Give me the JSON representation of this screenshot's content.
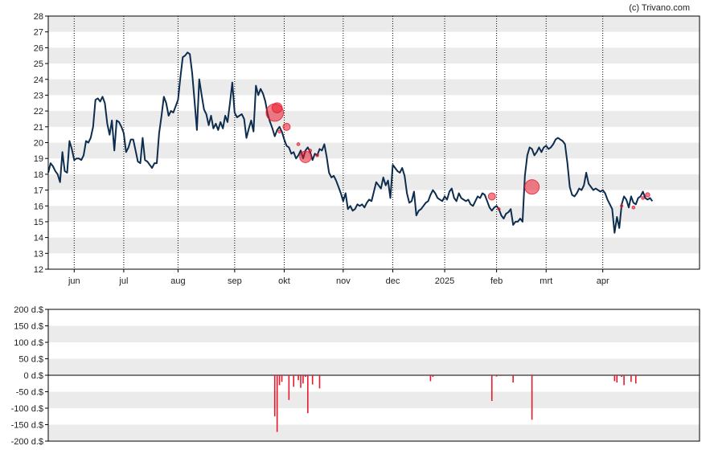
{
  "credit": "(c) Trivano.com",
  "colors": {
    "price_line": "#0d2d4f",
    "band": "#ebebeb",
    "insider_bar": "#e8192c",
    "bubble": "#e8192c",
    "axis": "#000000"
  },
  "chart_data": [
    {
      "type": "line",
      "name": "price",
      "ylim": [
        12,
        28
      ],
      "yticks": [
        "12",
        "13",
        "14",
        "15",
        "16",
        "17",
        "18",
        "19",
        "20",
        "21",
        "22",
        "23",
        "24",
        "25",
        "26",
        "27",
        "28"
      ],
      "month_labels": [
        "jun",
        "jul",
        "aug",
        "sep",
        "okt",
        "nov",
        "dec",
        "2025",
        "feb",
        "mrt",
        "apr"
      ],
      "month_positions": [
        11,
        32,
        55,
        79,
        100,
        125,
        146,
        168,
        190,
        211,
        235
      ],
      "x_range": [
        0,
        276
      ],
      "values": [
        [
          0,
          18.1
        ],
        [
          1,
          18.7
        ],
        [
          2,
          18.5
        ],
        [
          3,
          18.2
        ],
        [
          4,
          18.0
        ],
        [
          5,
          17.5
        ],
        [
          6,
          19.4
        ],
        [
          7,
          18.2
        ],
        [
          8,
          18.1
        ],
        [
          9,
          20.1
        ],
        [
          10,
          19.6
        ],
        [
          11,
          18.9
        ],
        [
          12,
          19.0
        ],
        [
          13,
          19.0
        ],
        [
          14,
          18.9
        ],
        [
          15,
          19.2
        ],
        [
          16,
          20.1
        ],
        [
          17,
          20.0
        ],
        [
          18,
          20.3
        ],
        [
          19,
          21.0
        ],
        [
          20,
          22.7
        ],
        [
          21,
          22.8
        ],
        [
          22,
          22.6
        ],
        [
          23,
          22.9
        ],
        [
          24,
          22.5
        ],
        [
          25,
          21.2
        ],
        [
          26,
          20.5
        ],
        [
          27,
          21.4
        ],
        [
          28,
          19.5
        ],
        [
          29,
          21.4
        ],
        [
          30,
          21.3
        ],
        [
          31,
          21.0
        ],
        [
          32,
          20.6
        ],
        [
          33,
          19.4
        ],
        [
          34,
          19.7
        ],
        [
          35,
          20.2
        ],
        [
          36,
          20.2
        ],
        [
          37,
          19.5
        ],
        [
          38,
          18.8
        ],
        [
          39,
          18.7
        ],
        [
          40,
          20.3
        ],
        [
          41,
          18.9
        ],
        [
          42,
          18.8
        ],
        [
          43,
          18.6
        ],
        [
          44,
          18.4
        ],
        [
          45,
          18.7
        ],
        [
          46,
          18.7
        ],
        [
          47,
          20.6
        ],
        [
          48,
          21.7
        ],
        [
          49,
          22.9
        ],
        [
          50,
          22.5
        ],
        [
          51,
          21.7
        ],
        [
          52,
          22.0
        ],
        [
          53,
          21.9
        ],
        [
          54,
          22.3
        ],
        [
          55,
          22.7
        ],
        [
          56,
          24.1
        ],
        [
          57,
          25.4
        ],
        [
          58,
          25.5
        ],
        [
          59,
          25.7
        ],
        [
          60,
          25.6
        ],
        [
          61,
          24.4
        ],
        [
          62,
          22.6
        ],
        [
          63,
          20.8
        ],
        [
          64,
          24.0
        ],
        [
          65,
          23.0
        ],
        [
          66,
          22.1
        ],
        [
          67,
          21.8
        ],
        [
          68,
          21.1
        ],
        [
          69,
          21.7
        ],
        [
          70,
          20.9
        ],
        [
          71,
          21.2
        ],
        [
          72,
          20.8
        ],
        [
          73,
          21.3
        ],
        [
          74,
          20.9
        ],
        [
          75,
          21.7
        ],
        [
          76,
          21.3
        ],
        [
          77,
          22.5
        ],
        [
          78,
          23.8
        ],
        [
          79,
          21.9
        ],
        [
          80,
          21.6
        ],
        [
          81,
          21.7
        ],
        [
          82,
          21.8
        ],
        [
          83,
          21.5
        ],
        [
          84,
          20.3
        ],
        [
          85,
          20.9
        ],
        [
          86,
          21.4
        ],
        [
          87,
          20.7
        ],
        [
          88,
          23.6
        ],
        [
          89,
          23.0
        ],
        [
          90,
          23.4
        ],
        [
          91,
          23.1
        ],
        [
          92,
          22.6
        ],
        [
          93,
          21.8
        ],
        [
          94,
          21.3
        ],
        [
          95,
          20.9
        ],
        [
          96,
          20.4
        ],
        [
          97,
          20.8
        ],
        [
          98,
          21.0
        ],
        [
          99,
          20.7
        ],
        [
          100,
          20.2
        ],
        [
          101,
          19.8
        ],
        [
          102,
          19.7
        ],
        [
          103,
          19.3
        ],
        [
          104,
          19.4
        ],
        [
          105,
          19.0
        ],
        [
          106,
          19.2
        ],
        [
          107,
          19.5
        ],
        [
          108,
          19.0
        ],
        [
          109,
          19.5
        ],
        [
          110,
          19.7
        ],
        [
          111,
          19.4
        ],
        [
          112,
          18.9
        ],
        [
          113,
          19.3
        ],
        [
          114,
          19.2
        ],
        [
          115,
          19.6
        ],
        [
          116,
          19.5
        ],
        [
          117,
          19.9
        ],
        [
          118,
          19.1
        ],
        [
          119,
          18.1
        ],
        [
          120,
          17.8
        ],
        [
          121,
          17.9
        ],
        [
          122,
          17.6
        ],
        [
          123,
          17.2
        ],
        [
          124,
          16.8
        ],
        [
          125,
          16.3
        ],
        [
          126,
          16.8
        ],
        [
          127,
          15.8
        ],
        [
          128,
          16.0
        ],
        [
          129,
          15.7
        ],
        [
          130,
          15.8
        ],
        [
          131,
          16.1
        ],
        [
          132,
          16.0
        ],
        [
          133,
          16.1
        ],
        [
          134,
          15.9
        ],
        [
          135,
          16.2
        ],
        [
          136,
          16.4
        ],
        [
          137,
          16.3
        ],
        [
          138,
          16.9
        ],
        [
          139,
          17.5
        ],
        [
          140,
          17.3
        ],
        [
          141,
          17.1
        ],
        [
          142,
          17.8
        ],
        [
          143,
          17.3
        ],
        [
          144,
          17.6
        ],
        [
          145,
          16.5
        ],
        [
          146,
          18.6
        ],
        [
          147,
          18.4
        ],
        [
          148,
          18.2
        ],
        [
          149,
          18.1
        ],
        [
          150,
          18.4
        ],
        [
          151,
          17.9
        ],
        [
          152,
          16.8
        ],
        [
          153,
          16.2
        ],
        [
          154,
          16.3
        ],
        [
          155,
          16.9
        ],
        [
          156,
          15.4
        ],
        [
          157,
          15.7
        ],
        [
          158,
          15.8
        ],
        [
          159,
          16.0
        ],
        [
          160,
          16.2
        ],
        [
          161,
          16.3
        ],
        [
          162,
          16.7
        ],
        [
          163,
          17.0
        ],
        [
          164,
          16.8
        ],
        [
          165,
          16.5
        ],
        [
          166,
          16.4
        ],
        [
          167,
          16.3
        ],
        [
          168,
          16.6
        ],
        [
          169,
          16.4
        ],
        [
          170,
          16.9
        ],
        [
          171,
          17.1
        ],
        [
          172,
          16.5
        ],
        [
          173,
          16.3
        ],
        [
          174,
          16.8
        ],
        [
          175,
          16.5
        ],
        [
          176,
          16.4
        ],
        [
          177,
          16.3
        ],
        [
          178,
          16.4
        ],
        [
          179,
          16.1
        ],
        [
          180,
          16.0
        ],
        [
          181,
          16.3
        ],
        [
          182,
          16.6
        ],
        [
          183,
          16.5
        ],
        [
          184,
          16.8
        ],
        [
          185,
          16.7
        ],
        [
          186,
          16.3
        ],
        [
          187,
          15.9
        ],
        [
          188,
          15.7
        ],
        [
          189,
          15.9
        ],
        [
          190,
          16.0
        ],
        [
          191,
          15.8
        ],
        [
          192,
          15.4
        ],
        [
          193,
          15.2
        ],
        [
          194,
          15.5
        ],
        [
          195,
          15.6
        ],
        [
          196,
          15.8
        ],
        [
          197,
          14.8
        ],
        [
          198,
          15.0
        ],
        [
          199,
          15.0
        ],
        [
          200,
          15.2
        ],
        [
          201,
          15.0
        ],
        [
          202,
          17.9
        ],
        [
          203,
          19.2
        ],
        [
          204,
          19.7
        ],
        [
          205,
          19.6
        ],
        [
          206,
          19.2
        ],
        [
          207,
          19.4
        ],
        [
          208,
          19.7
        ],
        [
          209,
          19.4
        ],
        [
          210,
          19.7
        ],
        [
          211,
          19.8
        ],
        [
          212,
          19.6
        ],
        [
          213,
          19.7
        ],
        [
          214,
          19.9
        ],
        [
          215,
          20.2
        ],
        [
          216,
          20.3
        ],
        [
          217,
          20.2
        ],
        [
          218,
          20.1
        ],
        [
          219,
          19.9
        ],
        [
          220,
          18.7
        ],
        [
          221,
          17.2
        ],
        [
          222,
          16.7
        ],
        [
          223,
          16.6
        ],
        [
          224,
          16.8
        ],
        [
          225,
          17.1
        ],
        [
          226,
          17.0
        ],
        [
          227,
          17.3
        ],
        [
          228,
          18.1
        ],
        [
          229,
          17.4
        ],
        [
          230,
          17.2
        ],
        [
          231,
          17.0
        ],
        [
          232,
          17.1
        ],
        [
          233,
          17.0
        ],
        [
          234,
          16.9
        ],
        [
          235,
          17.0
        ],
        [
          236,
          16.8
        ],
        [
          237,
          16.4
        ],
        [
          238,
          16.1
        ],
        [
          239,
          15.8
        ],
        [
          240,
          14.3
        ],
        [
          241,
          15.3
        ],
        [
          242,
          14.6
        ],
        [
          243,
          16.1
        ],
        [
          244,
          16.6
        ],
        [
          245,
          16.4
        ],
        [
          246,
          15.9
        ],
        [
          247,
          16.6
        ],
        [
          248,
          16.2
        ],
        [
          249,
          16.1
        ],
        [
          250,
          16.5
        ],
        [
          251,
          16.6
        ],
        [
          252,
          16.9
        ],
        [
          253,
          16.5
        ],
        [
          254,
          16.4
        ],
        [
          255,
          16.5
        ],
        [
          256,
          16.3
        ]
      ],
      "bubbles": [
        {
          "x": 96,
          "y": 21.9,
          "size": 12
        },
        {
          "x": 97,
          "y": 22.2,
          "size": 7
        },
        {
          "x": 98,
          "y": 20.7,
          "size": 2
        },
        {
          "x": 101,
          "y": 21.0,
          "size": 5
        },
        {
          "x": 106,
          "y": 19.9,
          "size": 2
        },
        {
          "x": 109,
          "y": 19.1,
          "size": 8
        },
        {
          "x": 111,
          "y": 19.5,
          "size": 2
        },
        {
          "x": 114,
          "y": 19.2,
          "size": 2
        },
        {
          "x": 188,
          "y": 16.6,
          "size": 5
        },
        {
          "x": 191,
          "y": 15.8,
          "size": 1
        },
        {
          "x": 205,
          "y": 17.2,
          "size": 10
        },
        {
          "x": 243,
          "y": 16.0,
          "size": 1
        },
        {
          "x": 248,
          "y": 15.9,
          "size": 2
        },
        {
          "x": 252,
          "y": 16.5,
          "size": 2
        },
        {
          "x": 254,
          "y": 16.7,
          "size": 3
        }
      ]
    },
    {
      "type": "bar",
      "name": "insider-trades",
      "ylim": [
        -200,
        200
      ],
      "yticks": [
        "200 d.$",
        "150 d.$",
        "100 d.$",
        "50 d.$",
        "0 d.$",
        "-50 d.$",
        "-100 d.$",
        "-150 d.$",
        "-200 d.$"
      ],
      "bars": [
        [
          96,
          -125
        ],
        [
          97,
          -172
        ],
        [
          98,
          -30
        ],
        [
          99,
          -20
        ],
        [
          102,
          -75
        ],
        [
          104,
          -35
        ],
        [
          106,
          -15
        ],
        [
          107,
          -38
        ],
        [
          108,
          -25
        ],
        [
          109,
          -5
        ],
        [
          110,
          -115
        ],
        [
          112,
          -28
        ],
        [
          115,
          -40
        ],
        [
          162,
          -18
        ],
        [
          163,
          -5
        ],
        [
          188,
          -78
        ],
        [
          190,
          -4
        ],
        [
          192,
          -2
        ],
        [
          197,
          -22
        ],
        [
          205,
          -135
        ],
        [
          240,
          -18
        ],
        [
          241,
          -22
        ],
        [
          243,
          -5
        ],
        [
          244,
          -30
        ],
        [
          247,
          -20
        ],
        [
          249,
          -25
        ]
      ]
    }
  ]
}
